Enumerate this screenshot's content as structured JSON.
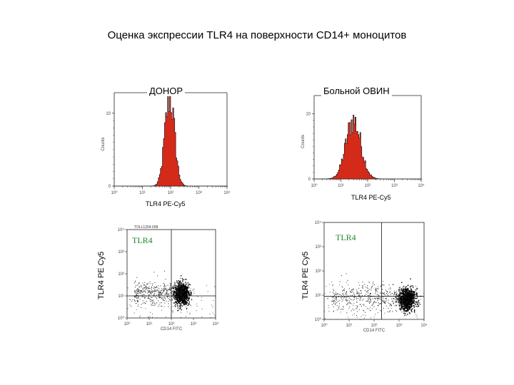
{
  "title": "Оценка экспрессии TLR4 на поверхности CD14+ моноцитов",
  "chart_data": [
    {
      "type": "histogram",
      "panel_header": "ДОНОР",
      "xlabel": "TLR4 PE-Cy5",
      "ylabel": "Counts",
      "x_scale": "log",
      "xlim": [
        1,
        10000
      ],
      "x_ticks": [
        "10⁰",
        "10¹",
        "10²",
        "10³",
        "10⁴"
      ],
      "y_ticks": [
        "0",
        "10"
      ],
      "fill_color": "#d42a1a",
      "peak_log10": 1.95,
      "spread_log10": 0.17,
      "peak_height": 0.95
    },
    {
      "type": "histogram",
      "panel_header": "Больной ОВИН",
      "xlabel": "TLR4 PE-Cy5",
      "ylabel": "Counts",
      "x_scale": "log",
      "xlim": [
        1,
        10000
      ],
      "x_ticks": [
        "10⁰",
        "10¹",
        "10²",
        "10³",
        "10⁴"
      ],
      "y_ticks": [
        "0",
        "10"
      ],
      "fill_color": "#d42a1a",
      "peak_log10": 1.45,
      "spread_log10": 0.28,
      "peak_height": 0.7
    },
    {
      "type": "scatter",
      "quadrant_label": "TLR4",
      "ylabel": "TLR4 PE Cy5",
      "xlabel": "CD14 FITC",
      "stamp": "TOLL1204.008",
      "x_scale": "log",
      "y_scale": "log",
      "x_ticks": [
        "10⁰",
        "10¹",
        "10²",
        "10³",
        "10⁴"
      ],
      "y_ticks": [
        "10⁰",
        "10¹",
        "10²",
        "10³",
        "10⁴"
      ],
      "cluster_center_log10": [
        2.45,
        1.1
      ],
      "quadrant_split_log10": [
        2.0,
        1.0
      ]
    },
    {
      "type": "scatter",
      "quadrant_label": "TLR4",
      "ylabel": "TLR4 PE Cy5",
      "xlabel": "CD14 FITC",
      "stamp": "",
      "x_scale": "log",
      "y_scale": "log",
      "x_ticks": [
        "10⁰",
        "10¹",
        "10²",
        "10³",
        "10⁴"
      ],
      "y_ticks": [
        "10⁰",
        "10¹",
        "10²",
        "10³",
        "10⁴"
      ],
      "cluster_center_log10": [
        3.3,
        0.85
      ],
      "quadrant_split_log10": [
        2.3,
        0.95
      ]
    }
  ]
}
